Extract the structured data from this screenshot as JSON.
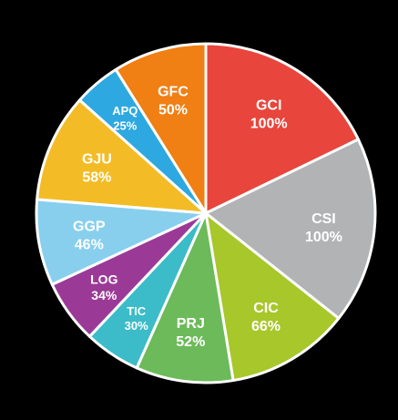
{
  "chart_data": {
    "type": "pie",
    "start_angle_deg": 0,
    "direction": "clockwise",
    "legend": "none",
    "slices": [
      {
        "name": "GCI",
        "value": 100,
        "label": "100%",
        "color": "#e8453c"
      },
      {
        "name": "CSI",
        "value": 100,
        "label": "100%",
        "color": "#b1b3b5"
      },
      {
        "name": "CIC",
        "value": 66,
        "label": "66%",
        "color": "#a7c72a"
      },
      {
        "name": "PRJ",
        "value": 52,
        "label": "52%",
        "color": "#6cba5a"
      },
      {
        "name": "TIC",
        "value": 30,
        "label": "30%",
        "color": "#3bbcc8"
      },
      {
        "name": "LOG",
        "value": 34,
        "label": "34%",
        "color": "#9b3a96"
      },
      {
        "name": "GGP",
        "value": 46,
        "label": "46%",
        "color": "#88cfee"
      },
      {
        "name": "GJU",
        "value": 58,
        "label": "58%",
        "color": "#f3bc26"
      },
      {
        "name": "APQ",
        "value": 25,
        "label": "25%",
        "color": "#2ea8e0"
      },
      {
        "name": "GFC",
        "value": 50,
        "label": "50%",
        "color": "#f07f14"
      }
    ]
  }
}
